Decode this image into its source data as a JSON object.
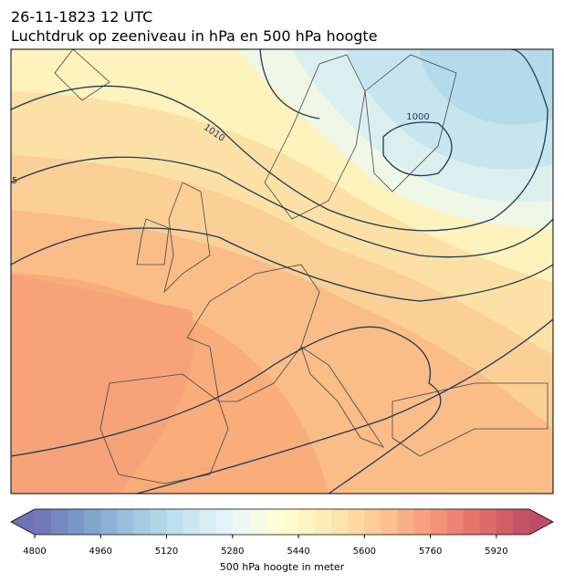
{
  "header": {
    "date": "26-11-1823 12 UTC",
    "title": "Luchtdruk op zeeniveau in hPa en 500 hPa hoogte"
  },
  "map": {
    "contour_labels": [
      "1010",
      "1000",
      "5"
    ]
  },
  "colorbar": {
    "label": "500 hPa hoogte in meter",
    "lim": [
      4800,
      6000
    ],
    "step": 40,
    "ticks": [
      4800,
      4960,
      5120,
      5280,
      5440,
      5600,
      5760,
      5920
    ]
  }
}
